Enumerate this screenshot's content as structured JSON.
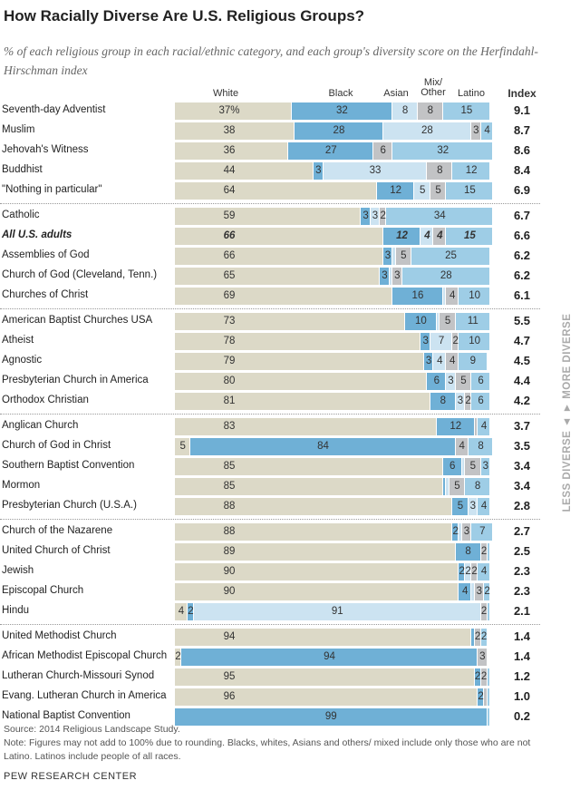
{
  "title": "How Racially Diverse Are U.S. Religious Groups?",
  "subtitle": "% of each religious group in each racial/ethnic category, and each group's diversity score on the Herfindahl-Hirschman index",
  "axis_note": "LESS DIVERSE ◄ ► MORE DIVERSE",
  "source": "Source: 2014 Religious Landscape Study.",
  "note": "Note: Figures may not add to 100% due to rounding. Blacks, whites, Asians and others/ mixed include only those who are not Latino. Latinos include people of all races.",
  "brand": "PEW RESEARCH CENTER",
  "chart_data": {
    "type": "bar",
    "orientation": "horizontal-stacked",
    "series_names": [
      "White",
      "Black",
      "Asian",
      "Mix/ Other",
      "Latino"
    ],
    "index_header": "Index",
    "colors": {
      "White": "#dcd9c7",
      "Black": "#6fb0d6",
      "Asian": "#cce3f1",
      "Mix/ Other": "#c2c3c5",
      "Latino": "#9ecde6"
    },
    "xlim": [
      0,
      100
    ],
    "rows": [
      {
        "name": "Seventh-day Adventist",
        "values": [
          37,
          32,
          8,
          8,
          15
        ],
        "labels": [
          "37%",
          "32",
          "8",
          "8",
          "15"
        ],
        "index": "9.1"
      },
      {
        "name": "Muslim",
        "values": [
          38,
          28,
          28,
          3,
          4
        ],
        "labels": [
          "38",
          "28",
          "28",
          "3",
          "4"
        ],
        "index": "8.7"
      },
      {
        "name": "Jehovah's Witness",
        "values": [
          36,
          27,
          0,
          6,
          32
        ],
        "labels": [
          "36",
          "27",
          "",
          "6",
          "32"
        ],
        "index": "8.6"
      },
      {
        "name": "Buddhist",
        "values": [
          44,
          3,
          33,
          8,
          12
        ],
        "labels": [
          "44",
          "3",
          "33",
          "8",
          "12"
        ],
        "index": "8.4"
      },
      {
        "name": "\"Nothing in particular\"",
        "values": [
          64,
          12,
          5,
          5,
          15
        ],
        "labels": [
          "64",
          "12",
          "5",
          "5",
          "15"
        ],
        "index": "6.9"
      },
      {
        "name": "Catholic",
        "values": [
          59,
          3,
          3,
          2,
          34
        ],
        "labels": [
          "59",
          "3",
          "3",
          "2",
          "34"
        ],
        "index": "6.7"
      },
      {
        "name": "All U.S. adults",
        "values": [
          66,
          12,
          4,
          4,
          15
        ],
        "labels": [
          "66",
          "12",
          "4",
          "4",
          "15"
        ],
        "index": "6.6",
        "highlight": true
      },
      {
        "name": "Assemblies of God",
        "values": [
          66,
          3,
          1,
          5,
          25
        ],
        "labels": [
          "66",
          "3",
          "",
          "5",
          "25"
        ],
        "index": "6.2"
      },
      {
        "name": "Church of God (Cleveland, Tenn.)",
        "values": [
          65,
          3,
          1,
          3,
          28
        ],
        "labels": [
          "65",
          "3",
          "",
          "3",
          "28"
        ],
        "index": "6.2"
      },
      {
        "name": "Churches of Christ",
        "values": [
          69,
          16,
          1,
          4,
          10
        ],
        "labels": [
          "69",
          "16",
          "",
          "4",
          "10"
        ],
        "index": "6.1"
      },
      {
        "name": "American Baptist Churches USA",
        "values": [
          73,
          10,
          1,
          5,
          11
        ],
        "labels": [
          "73",
          "10",
          "",
          "5",
          "11"
        ],
        "index": "5.5"
      },
      {
        "name": "Atheist",
        "values": [
          78,
          3,
          7,
          2,
          10
        ],
        "labels": [
          "78",
          "3",
          "7",
          "2",
          "10"
        ],
        "index": "4.7"
      },
      {
        "name": "Agnostic",
        "values": [
          79,
          3,
          4,
          4,
          9
        ],
        "labels": [
          "79",
          "3",
          "4",
          "4",
          "9"
        ],
        "index": "4.5"
      },
      {
        "name": "Presbyterian Church in America",
        "values": [
          80,
          6,
          3,
          5,
          6
        ],
        "labels": [
          "80",
          "6",
          "3",
          "5",
          "6"
        ],
        "index": "4.4"
      },
      {
        "name": "Orthodox Christian",
        "values": [
          81,
          8,
          3,
          2,
          6
        ],
        "labels": [
          "81",
          "8",
          "3",
          "2",
          "6"
        ],
        "index": "4.2"
      },
      {
        "name": "Anglican Church",
        "values": [
          83,
          12,
          0,
          1,
          4
        ],
        "labels": [
          "83",
          "12",
          "",
          "",
          "4"
        ],
        "index": "3.7"
      },
      {
        "name": "Church of God in Christ",
        "values": [
          5,
          84,
          0,
          4,
          8
        ],
        "labels": [
          "5",
          "84",
          "",
          "4",
          "8"
        ],
        "index": "3.5"
      },
      {
        "name": "Southern Baptist Convention",
        "values": [
          85,
          6,
          1,
          5,
          3
        ],
        "labels": [
          "85",
          "6",
          "",
          "5",
          "3"
        ],
        "index": "3.4"
      },
      {
        "name": "Mormon",
        "values": [
          85,
          1,
          1,
          5,
          8
        ],
        "labels": [
          "85",
          "",
          "",
          "5",
          "8"
        ],
        "index": "3.4"
      },
      {
        "name": "Presbyterian Church (U.S.A.)",
        "values": [
          88,
          5,
          3,
          0,
          4
        ],
        "labels": [
          "88",
          "5",
          "3",
          "",
          "4"
        ],
        "index": "2.8"
      },
      {
        "name": "Church of the Nazarene",
        "values": [
          88,
          2,
          1,
          3,
          7
        ],
        "labels": [
          "88",
          "2",
          "",
          "3",
          "7"
        ],
        "index": "2.7"
      },
      {
        "name": "United Church of Christ",
        "values": [
          89,
          8,
          0,
          2,
          1
        ],
        "labels": [
          "89",
          "8",
          "",
          "2",
          ""
        ],
        "index": "2.5"
      },
      {
        "name": "Jewish",
        "values": [
          90,
          2,
          2,
          2,
          4
        ],
        "labels": [
          "90",
          "2",
          "2",
          "2",
          "4"
        ],
        "index": "2.3"
      },
      {
        "name": "Episcopal Church",
        "values": [
          90,
          4,
          1,
          3,
          2
        ],
        "labels": [
          "90",
          "4",
          "",
          "3",
          "2"
        ],
        "index": "2.3"
      },
      {
        "name": "Hindu",
        "values": [
          4,
          2,
          91,
          2,
          1
        ],
        "labels": [
          "4",
          "2",
          "91",
          "2",
          ""
        ],
        "index": "2.1"
      },
      {
        "name": "United Methodist Church",
        "values": [
          94,
          1,
          0,
          2,
          2
        ],
        "labels": [
          "94",
          "",
          "",
          "2",
          "2"
        ],
        "index": "1.4"
      },
      {
        "name": "African Methodist Episcopal Church",
        "values": [
          2,
          94,
          0,
          3,
          0
        ],
        "labels": [
          "2",
          "94",
          "",
          "3",
          ""
        ],
        "index": "1.4"
      },
      {
        "name": "Lutheran Church-Missouri Synod",
        "values": [
          95,
          2,
          0,
          2,
          1
        ],
        "labels": [
          "95",
          "2",
          "",
          "2",
          ""
        ],
        "index": "1.2"
      },
      {
        "name": "Evang. Lutheran Church in America",
        "values": [
          96,
          2,
          0,
          1,
          1
        ],
        "labels": [
          "96",
          "2",
          "",
          "",
          ""
        ],
        "index": "1.0"
      },
      {
        "name": "National Baptist Convention",
        "values": [
          0,
          99,
          0,
          0,
          1
        ],
        "labels": [
          "",
          "99",
          "",
          "",
          ""
        ],
        "index": "0.2"
      }
    ]
  }
}
